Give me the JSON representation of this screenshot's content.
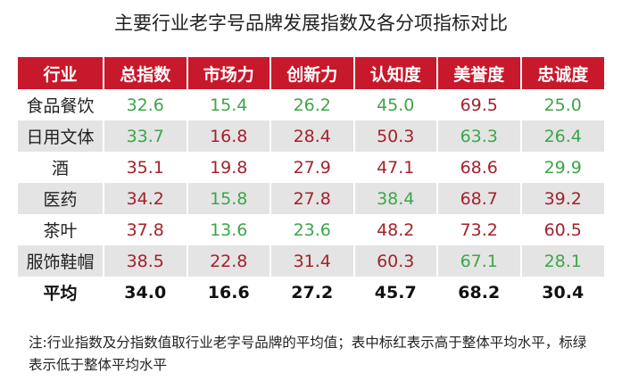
{
  "title": "主要行业老字号品牌发展指数及各分项指标对比",
  "table": {
    "header": [
      "行业",
      "总指数",
      "市场力",
      "创新力",
      "认知度",
      "美誉度",
      "忠诚度"
    ],
    "rows": [
      [
        "食品餐饮",
        "32.6",
        "15.4",
        "26.2",
        "45.0",
        "69.5",
        "25.0"
      ],
      [
        "日用文体",
        "33.7",
        "16.8",
        "28.4",
        "50.3",
        "63.3",
        "26.4"
      ],
      [
        "酒",
        "35.1",
        "19.8",
        "27.9",
        "47.1",
        "68.6",
        "29.9"
      ],
      [
        "医药",
        "34.2",
        "15.8",
        "27.8",
        "38.4",
        "68.7",
        "39.2"
      ],
      [
        "茶叶",
        "37.8",
        "13.6",
        "23.6",
        "48.2",
        "73.2",
        "60.5"
      ],
      [
        "服饰鞋帽",
        "38.5",
        "22.8",
        "31.4",
        "60.3",
        "67.1",
        "28.1"
      ]
    ],
    "average": [
      "平均",
      "34.0",
      "16.6",
      "27.2",
      "45.7",
      "68.2",
      "30.4"
    ],
    "colors": {
      "above": "#a3222c",
      "below": "#3ea54a",
      "header": "#c8182b"
    }
  },
  "note": "注:行业指数及分指数值取行业老字号品牌的平均值；表中标红表示高于整体平均水平，标绿表示低于整体平均水平"
}
